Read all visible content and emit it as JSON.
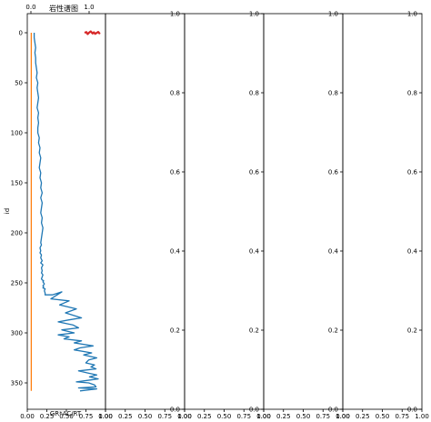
{
  "chart_data": [
    {
      "type": "line",
      "title": "岩性谱图",
      "ylabel": "id",
      "xlabel": "GR*AC/RT",
      "ylim_inverted": [
        0,
        370
      ],
      "y_ticks": [
        0,
        50,
        100,
        150,
        200,
        250,
        300,
        350
      ],
      "top_x_ticks": [
        "0.0",
        "1.0"
      ],
      "colors": {
        "main": "#1f77b4",
        "secondary": "#ff7f0e",
        "marker": "#d62728"
      },
      "series": [
        {
          "role": "main",
          "x_axis": "top",
          "xlim": [
            0,
            1
          ],
          "x": [
            0.07,
            0.07,
            0.08,
            0.09,
            0.08,
            0.09,
            0.09,
            0.1,
            0.11,
            0.1,
            0.12,
            0.11,
            0.12,
            0.13,
            0.12,
            0.11,
            0.13,
            0.12,
            0.13,
            0.12,
            0.12,
            0.14,
            0.13,
            0.15,
            0.14,
            0.16,
            0.15,
            0.14,
            0.16,
            0.15,
            0.17,
            0.16,
            0.18,
            0.16,
            0.18,
            0.17,
            0.16,
            0.18,
            0.17,
            0.19,
            0.18,
            0.17,
            0.16,
            0.17,
            0.15,
            0.16,
            0.15,
            0.17,
            0.16,
            0.18,
            0.16,
            0.19,
            0.17,
            0.18,
            0.17,
            0.19,
            0.18,
            0.17,
            0.18,
            0.2,
            0.19,
            0.2,
            0.21,
            0.2,
            0.19,
            0.2,
            0.19,
            0.22,
            0.21,
            0.22,
            0.22,
            0.32,
            0.45,
            0.3,
            0.55,
            0.42,
            0.65,
            0.5,
            0.72,
            0.55,
            0.4,
            0.6,
            0.68,
            0.45,
            0.62,
            0.4,
            0.55,
            0.48,
            0.72,
            0.62,
            0.88,
            0.7,
            0.62,
            0.86,
            0.75,
            0.93,
            0.82,
            0.78,
            0.9,
            0.85,
            0.92,
            0.68,
            0.8,
            0.93,
            0.83,
            0.95,
            0.75,
            0.65,
            0.82,
            0.9,
            0.92,
            0.68,
            0.93,
            0.7
          ],
          "y": [
            0,
            5,
            10,
            15,
            20,
            25,
            30,
            35,
            40,
            45,
            50,
            55,
            60,
            65,
            70,
            75,
            80,
            85,
            90,
            95,
            100,
            105,
            110,
            115,
            120,
            125,
            130,
            135,
            140,
            145,
            150,
            155,
            160,
            165,
            170,
            175,
            180,
            185,
            190,
            195,
            200,
            205,
            210,
            212,
            215,
            218,
            220,
            222,
            225,
            228,
            230,
            232,
            235,
            238,
            240,
            242,
            244,
            246,
            247,
            248,
            249,
            250,
            251,
            252,
            253,
            254,
            255,
            256,
            258,
            260,
            262,
            262,
            259,
            266,
            268,
            272,
            276,
            280,
            285,
            287,
            289,
            292,
            295,
            297,
            300,
            302,
            304,
            306,
            308,
            310,
            313,
            315,
            317,
            320,
            322,
            325,
            327,
            330,
            332,
            334,
            336,
            338,
            340,
            342,
            344,
            346,
            348,
            349,
            350,
            352,
            354,
            355,
            356,
            358
          ]
        },
        {
          "role": "secondary",
          "x_axis": "top",
          "xlim": [
            0,
            1
          ],
          "x": [
            0.03,
            0.03
          ],
          "y": [
            0,
            358
          ]
        },
        {
          "role": "marker",
          "x_axis": "secondary-top",
          "xlim": [
            0,
            1
          ],
          "x": [
            0.75,
            0.78,
            0.8,
            0.82,
            0.85,
            0.88,
            0.9,
            0.92,
            0.95,
            0.97,
            0.99,
            1.0
          ],
          "y": [
            0,
            -0.5,
            1,
            0,
            -1,
            0.5,
            -0.3,
            0.8,
            0,
            -0.6,
            0.4,
            0
          ]
        }
      ]
    },
    {
      "type": "line",
      "xlim": [
        0,
        1
      ],
      "ylim": [
        0,
        1
      ],
      "x_ticks": [
        "0.00",
        "0.25",
        "0.50",
        "0.75",
        "1.00"
      ],
      "y_ticks": [
        "0.0",
        "0.2",
        "0.4",
        "0.6",
        "0.8",
        "1.0"
      ]
    },
    {
      "type": "line",
      "xlim": [
        0,
        1
      ],
      "ylim": [
        0,
        1
      ],
      "x_ticks": [
        "0.00",
        "0.25",
        "0.50",
        "0.75",
        "1.00"
      ],
      "y_ticks": [
        "0.0",
        "0.2",
        "0.4",
        "0.6",
        "0.8",
        "1.0"
      ]
    },
    {
      "type": "line",
      "xlim": [
        0,
        1
      ],
      "ylim": [
        0,
        1
      ],
      "x_ticks": [
        "0.00",
        "0.25",
        "0.50",
        "0.75",
        "1.00"
      ],
      "y_ticks": [
        "0.0",
        "0.2",
        "0.4",
        "0.6",
        "0.8",
        "1.0"
      ]
    },
    {
      "type": "line",
      "xlim": [
        0,
        1
      ],
      "ylim": [
        0,
        1
      ],
      "x_ticks": [
        "0.00",
        "0.25",
        "0.50",
        "0.75",
        "1.00"
      ],
      "y_ticks": [
        "0.0",
        "0.2",
        "0.4",
        "0.6",
        "0.8",
        "1.0"
      ]
    }
  ]
}
